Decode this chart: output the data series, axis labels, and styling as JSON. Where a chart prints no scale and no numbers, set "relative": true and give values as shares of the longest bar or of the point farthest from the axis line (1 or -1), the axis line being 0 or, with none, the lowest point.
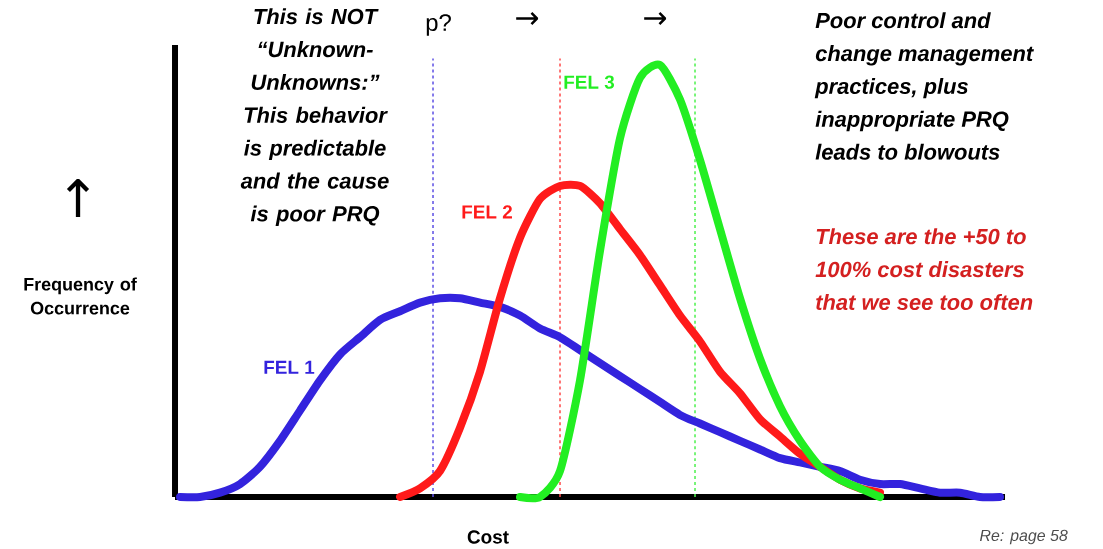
{
  "chart_data": {
    "type": "line",
    "relative": true,
    "xlabel": "Cost",
    "ylabel": "Frequency of Occurrence",
    "categories": [
      null,
      null,
      null,
      null,
      null,
      null,
      null,
      null,
      null,
      null,
      null,
      null,
      null,
      null,
      null,
      null,
      null,
      null,
      null,
      null,
      null,
      null,
      null,
      null,
      null,
      null,
      null,
      null,
      null,
      null,
      null,
      null,
      null,
      null,
      null,
      null,
      null,
      null,
      null,
      null,
      null,
      null
    ],
    "series": [
      {
        "name": "FEL 1",
        "color": "#3323dd",
        "values": [
          0,
          0.0,
          0.01,
          0.03,
          0.07,
          0.13,
          0.2,
          0.27,
          0.33,
          0.37,
          0.41,
          0.43,
          0.45,
          0.46,
          0.46,
          0.45,
          0.44,
          0.42,
          0.39,
          0.37,
          0.34,
          0.31,
          0.28,
          0.25,
          0.22,
          0.19,
          0.17,
          0.15,
          0.13,
          0.11,
          0.09,
          0.08,
          0.07,
          0.06,
          0.04,
          0.03,
          0.03,
          0.02,
          0.01,
          0.01,
          0.0,
          0
        ]
      },
      {
        "name": "FEL 2",
        "color": "#ff1a1a",
        "values": [
          null,
          null,
          null,
          null,
          null,
          null,
          null,
          null,
          null,
          null,
          null,
          0.0,
          0.02,
          0.06,
          0.16,
          0.29,
          0.46,
          0.6,
          0.69,
          0.72,
          0.72,
          0.68,
          0.62,
          0.56,
          0.49,
          0.42,
          0.36,
          0.29,
          0.24,
          0.18,
          0.14,
          0.1,
          0.07,
          0.04,
          0.02,
          0.01,
          null,
          null,
          null,
          null,
          null,
          null
        ]
      },
      {
        "name": "FEL 3",
        "color": "#22ee22",
        "values": [
          null,
          null,
          null,
          null,
          null,
          null,
          null,
          null,
          null,
          null,
          null,
          null,
          null,
          null,
          null,
          null,
          null,
          0.0,
          0.0,
          0.06,
          0.27,
          0.57,
          0.83,
          0.97,
          1.0,
          0.92,
          0.78,
          0.62,
          0.46,
          0.32,
          0.21,
          0.13,
          0.07,
          0.04,
          0.02,
          0.0,
          null,
          null,
          null,
          null,
          null,
          null
        ]
      }
    ],
    "annotations": [
      "p?",
      "This is NOT “Unknown-Unknowns:” This behavior is predictable and the cause is poor PRQ",
      "Poor control and change management practices, plus inappropriate PRQ leads to blowouts",
      "These are the +50 to 100% cost disasters that we see too often",
      "Re: page 58",
      "→",
      "→",
      "↑"
    ]
  }
}
